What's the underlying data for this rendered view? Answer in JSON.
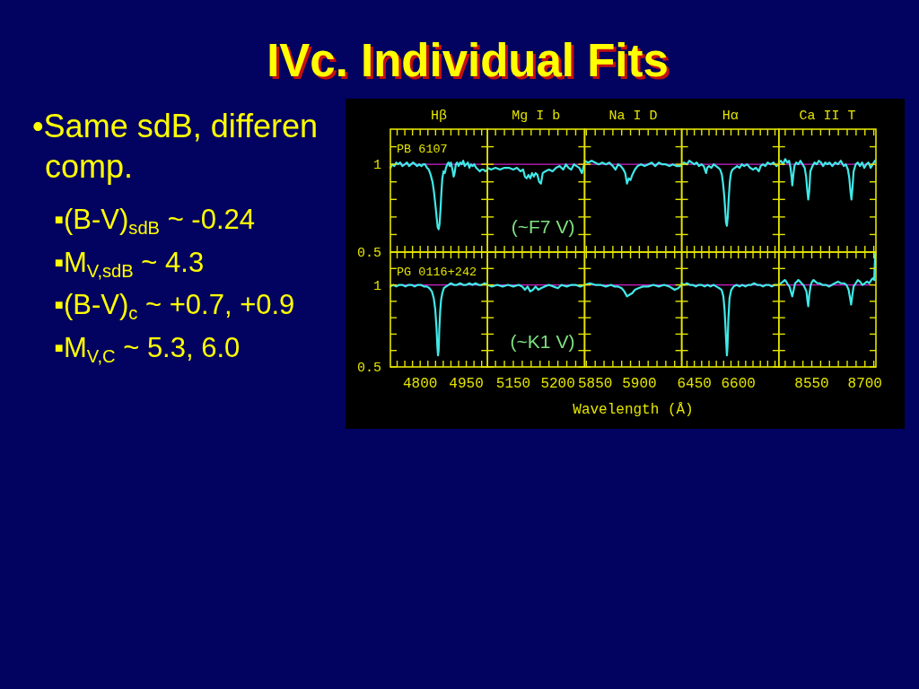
{
  "chart_data": [
    {
      "type": "other",
      "title": "IVc. Individual Fits",
      "subtitle": "•Same sdB, differen comp.",
      "annotations": [
        "▪(B-V)$_{sdB}$ ~ -0.24",
        "▪M$_{V,sdB}$ ~ 4.3",
        "▪(B-V)$_{c}$ ~ +0.7, +0.9",
        "▪M$_{V,C}$ ~ 5.3, 6.0"
      ]
    },
    {
      "type": "line",
      "title": "Hβ",
      "color": "#40e8e8",
      "x": [
        4703,
        4710,
        4716,
        4722,
        4728,
        4735,
        4742,
        4750,
        4757,
        4764,
        4770,
        4777,
        4784,
        4790,
        4797,
        4804,
        4810,
        4816,
        4822,
        4828,
        4834,
        4840,
        4845,
        4850,
        4854,
        4857,
        4860,
        4863,
        4866,
        4869,
        4872,
        4876,
        4880,
        4884,
        4888,
        4892,
        4896,
        4900,
        4905,
        4909,
        4912,
        4916,
        4920,
        4925,
        4930,
        4935,
        4940,
        4945,
        4950,
        4955,
        4960,
        4965,
        4970,
        4976,
        4982,
        4988,
        4994,
        5000,
        5006,
        5012,
        5019
      ],
      "values": [
        0.98,
        1.0,
        0.99,
        1.01,
        1.0,
        1.01,
        0.99,
        1.0,
        1.01,
        0.99,
        1.0,
        1.01,
        1.0,
        0.99,
        1.0,
        0.99,
        1.0,
        1.0,
        0.98,
        0.97,
        0.94,
        0.9,
        0.84,
        0.76,
        0.69,
        0.64,
        0.63,
        0.66,
        0.74,
        0.84,
        0.92,
        0.96,
        0.95,
        0.98,
        1.0,
        1.01,
        0.99,
        1.01,
        0.97,
        0.93,
        0.95,
        1.0,
        1.01,
        0.99,
        1.01,
        1.0,
        1.02,
        0.99,
        1.0,
        1.01,
        0.98,
        1.0,
        0.99,
        1.0,
        0.98,
        0.97,
        0.96,
        0.97,
        0.97,
        0.96,
        0.97
      ],
      "xlim": [
        4703,
        5019
      ],
      "xticks": [
        {
          "value": 4725,
          "label": null
        },
        {
          "value": 4750,
          "label": null
        },
        {
          "value": 4775,
          "label": null
        },
        4800,
        {
          "value": 4825,
          "label": null
        },
        {
          "value": 4850,
          "label": null
        },
        {
          "value": 4875,
          "label": null
        },
        {
          "value": 4900,
          "label": null
        },
        {
          "value": 4925,
          "label": null
        },
        4950,
        {
          "value": 4975,
          "label": null
        },
        {
          "value": 5000,
          "label": null
        }
      ],
      "ylim": [
        0.5,
        1.2
      ],
      "yticks": [
        {
          "value": 0.5,
          "label": "0.5"
        },
        {
          "value": 0.6,
          "label": null
        },
        {
          "value": 0.7,
          "label": null
        },
        {
          "value": 0.8,
          "label": null
        },
        {
          "value": 0.9,
          "label": null
        },
        {
          "value": 1,
          "label": "1"
        },
        {
          "value": 1.1,
          "label": null
        }
      ],
      "tick_labels": "y",
      "ref_lines": [
        {
          "axis": "y",
          "value": 1,
          "color": "#cc22cc"
        }
      ],
      "annotations": [
        "PB 6107"
      ]
    },
    {
      "type": "line",
      "title": "Mg I b",
      "color": "#40e8e8",
      "x": [
        5121,
        5125,
        5130,
        5135,
        5140,
        5145,
        5150,
        5154,
        5158,
        5161,
        5163,
        5165,
        5167,
        5169,
        5171,
        5173,
        5175,
        5177,
        5179,
        5181,
        5183,
        5186,
        5190,
        5194,
        5198,
        5202,
        5206,
        5209,
        5212,
        5215,
        5218,
        5221,
        5224,
        5227,
        5230
      ],
      "values": [
        0.98,
        0.97,
        0.98,
        0.97,
        0.98,
        0.98,
        0.97,
        0.98,
        0.96,
        0.97,
        0.93,
        0.92,
        0.94,
        0.92,
        0.95,
        0.93,
        0.95,
        0.94,
        0.9,
        0.89,
        0.95,
        0.96,
        0.97,
        0.96,
        0.98,
        0.99,
        0.97,
        1.0,
        0.98,
        0.97,
        1.0,
        0.99,
        0.98,
        0.95,
        1.01
      ],
      "xlim": [
        5121,
        5230
      ],
      "xticks": [
        {
          "value": 5130,
          "label": null
        },
        {
          "value": 5140,
          "label": null
        },
        5150,
        {
          "value": 5160,
          "label": null
        },
        {
          "value": 5170,
          "label": null
        },
        {
          "value": 5180,
          "label": null
        },
        {
          "value": 5190,
          "label": null
        },
        5200,
        {
          "value": 5210,
          "label": null
        },
        {
          "value": 5220,
          "label": null
        }
      ],
      "ylim": [
        0.5,
        1.2
      ],
      "yticks": [
        {
          "value": 0.5,
          "label": null
        },
        {
          "value": 0.6,
          "label": null
        },
        {
          "value": 0.7,
          "label": null
        },
        {
          "value": 0.8,
          "label": null
        },
        {
          "value": 0.9,
          "label": null
        },
        {
          "value": 1,
          "label": null
        },
        {
          "value": 1.1,
          "label": null
        }
      ],
      "tick_labels": false,
      "ref_lines": [
        {
          "axis": "y",
          "value": 1,
          "color": "#cc22cc"
        }
      ],
      "annotations": [
        "(~F7 V)"
      ]
    },
    {
      "type": "line",
      "title": "Na I D",
      "color": "#40e8e8",
      "x": [
        5838,
        5842,
        5846,
        5850,
        5854,
        5858,
        5862,
        5866,
        5870,
        5873,
        5876,
        5879,
        5882,
        5884,
        5886,
        5888,
        5890,
        5892,
        5895,
        5898,
        5902,
        5906,
        5910,
        5914,
        5918,
        5922,
        5926,
        5930,
        5934,
        5938,
        5942,
        5946,
        5948
      ],
      "values": [
        1.02,
        1.01,
        1.02,
        1.01,
        1.0,
        1.01,
        1.0,
        1.01,
        0.99,
        0.97,
        1.0,
        0.99,
        0.97,
        0.95,
        0.89,
        0.92,
        0.91,
        0.94,
        0.97,
        0.99,
        1.0,
        0.99,
        1.0,
        1.01,
        0.99,
        1.01,
        1.0,
        1.0,
        0.99,
        1.0,
        0.99,
        0.99,
        1.0
      ],
      "xlim": [
        5838,
        5948
      ],
      "xticks": [
        {
          "value": 5840,
          "label": null
        },
        5850,
        {
          "value": 5860,
          "label": null
        },
        {
          "value": 5870,
          "label": null
        },
        {
          "value": 5880,
          "label": null
        },
        {
          "value": 5890,
          "label": null
        },
        5900,
        {
          "value": 5910,
          "label": null
        },
        {
          "value": 5920,
          "label": null
        },
        {
          "value": 5930,
          "label": null
        },
        {
          "value": 5940,
          "label": null
        }
      ],
      "ylim": [
        0.5,
        1.2
      ],
      "yticks": [
        {
          "value": 0.5,
          "label": null
        },
        {
          "value": 0.6,
          "label": null
        },
        {
          "value": 0.7,
          "label": null
        },
        {
          "value": 0.8,
          "label": null
        },
        {
          "value": 0.9,
          "label": null
        },
        {
          "value": 1,
          "label": null
        },
        {
          "value": 1.1,
          "label": null
        }
      ],
      "tick_labels": false,
      "ref_lines": [
        {
          "axis": "y",
          "value": 1,
          "color": "#cc22cc"
        }
      ]
    },
    {
      "type": "line",
      "title": "Hα",
      "color": "#40e8e8",
      "x": [
        6407,
        6415,
        6425,
        6433,
        6441,
        6450,
        6458,
        6466,
        6474,
        6482,
        6490,
        6494,
        6500,
        6508,
        6516,
        6524,
        6532,
        6538,
        6544,
        6548,
        6552,
        6555,
        6558,
        6561,
        6564,
        6567,
        6571,
        6575,
        6580,
        6588,
        6596,
        6604,
        6612,
        6620,
        6630,
        6640,
        6650,
        6660,
        6670,
        6676,
        6684,
        6692,
        6700,
        6710,
        6720,
        6730,
        6738
      ],
      "values": [
        1.0,
        1.01,
        1.0,
        1.02,
        1.01,
        1.0,
        1.01,
        0.99,
        1.0,
        0.99,
        0.95,
        0.98,
        0.99,
        0.98,
        1.0,
        0.99,
        0.98,
        0.97,
        0.94,
        0.89,
        0.82,
        0.75,
        0.67,
        0.65,
        0.7,
        0.8,
        0.9,
        0.95,
        0.97,
        0.98,
        0.99,
        0.98,
        1.0,
        0.99,
        1.0,
        0.98,
        0.97,
        0.98,
        0.96,
        0.99,
        1.0,
        0.99,
        1.01,
        1.0,
        1.01,
        0.99,
        1.0
      ],
      "xlim": [
        6407,
        6738
      ],
      "xticks": [
        {
          "value": 6425,
          "label": null
        },
        6450,
        {
          "value": 6475,
          "label": null
        },
        {
          "value": 6500,
          "label": null
        },
        {
          "value": 6525,
          "label": null
        },
        {
          "value": 6550,
          "label": null
        },
        {
          "value": 6575,
          "label": null
        },
        6600,
        {
          "value": 6625,
          "label": null
        },
        {
          "value": 6650,
          "label": null
        },
        {
          "value": 6675,
          "label": null
        },
        {
          "value": 6700,
          "label": null
        },
        {
          "value": 6725,
          "label": null
        }
      ],
      "ylim": [
        0.5,
        1.2
      ],
      "yticks": [
        {
          "value": 0.5,
          "label": null
        },
        {
          "value": 0.6,
          "label": null
        },
        {
          "value": 0.7,
          "label": null
        },
        {
          "value": 0.8,
          "label": null
        },
        {
          "value": 0.9,
          "label": null
        },
        {
          "value": 1,
          "label": null
        },
        {
          "value": 1.1,
          "label": null
        }
      ],
      "tick_labels": false,
      "ref_lines": [
        {
          "axis": "y",
          "value": 1,
          "color": "#cc22cc"
        }
      ]
    },
    {
      "type": "line",
      "title": "Ca II T",
      "color": "#40e8e8",
      "x": [
        8457,
        8463,
        8469,
        8475,
        8481,
        8486,
        8490,
        8493,
        8495,
        8498,
        8501,
        8506,
        8512,
        8518,
        8524,
        8530,
        8534,
        8537,
        8540,
        8543,
        8546,
        8552,
        8558,
        8564,
        8570,
        8576,
        8582,
        8588,
        8594,
        8600,
        8608,
        8616,
        8624,
        8632,
        8640,
        8646,
        8652,
        8656,
        8659,
        8662,
        8665,
        8668,
        8674,
        8680,
        8686,
        8692,
        8698,
        8704,
        8710,
        8716,
        8722,
        8728
      ],
      "values": [
        1.01,
        1.02,
        1.0,
        1.03,
        1.01,
        1.02,
        0.98,
        0.93,
        0.88,
        0.94,
        0.99,
        1.01,
        1.0,
        1.02,
        1.0,
        0.98,
        0.93,
        0.86,
        0.8,
        0.85,
        0.96,
        0.99,
        1.01,
        1.0,
        1.02,
        1.01,
        0.99,
        1.01,
        1.0,
        1.01,
        0.99,
        1.01,
        1.0,
        1.02,
        0.99,
        1.0,
        0.97,
        0.92,
        0.85,
        0.8,
        0.87,
        0.96,
        1.0,
        1.01,
        0.99,
        1.01,
        0.98,
        1.0,
        1.01,
        0.98,
        1.0,
        1.02
      ],
      "xlim": [
        8457,
        8731
      ],
      "xticks": [
        {
          "value": 8475,
          "label": null
        },
        {
          "value": 8500,
          "label": null
        },
        {
          "value": 8525,
          "label": null
        },
        8550,
        {
          "value": 8575,
          "label": null
        },
        {
          "value": 8600,
          "label": null
        },
        {
          "value": 8625,
          "label": null
        },
        {
          "value": 8650,
          "label": null
        },
        {
          "value": 8675,
          "label": null
        },
        8700,
        {
          "value": 8725,
          "label": null
        }
      ],
      "ylim": [
        0.5,
        1.2
      ],
      "yticks": [
        {
          "value": 0.5,
          "label": null
        },
        {
          "value": 0.6,
          "label": null
        },
        {
          "value": 0.7,
          "label": null
        },
        {
          "value": 0.8,
          "label": null
        },
        {
          "value": 0.9,
          "label": null
        },
        {
          "value": 1,
          "label": null
        },
        {
          "value": 1.1,
          "label": null
        }
      ],
      "tick_labels": false,
      "ref_lines": [
        {
          "axis": "y",
          "value": 1,
          "color": "#cc22cc"
        }
      ]
    },
    {
      "type": "line",
      "color": "#40e8e8",
      "x": [
        4703,
        4712,
        4722,
        4732,
        4742,
        4752,
        4762,
        4772,
        4782,
        4792,
        4802,
        4812,
        4822,
        4830,
        4838,
        4844,
        4849,
        4853,
        4856,
        4858,
        4860,
        4862,
        4865,
        4868,
        4872,
        4877,
        4884,
        4892,
        4900,
        4910,
        4920,
        4930,
        4940,
        4950,
        4960,
        4970,
        4980,
        4990,
        5000,
        5010,
        5019
      ],
      "values": [
        0.99,
        1.0,
        0.99,
        1.0,
        1.0,
        0.99,
        1.0,
        1.0,
        0.99,
        1.0,
        1.0,
        0.99,
        0.99,
        0.98,
        0.96,
        0.92,
        0.85,
        0.74,
        0.62,
        0.57,
        0.6,
        0.72,
        0.84,
        0.91,
        0.95,
        0.98,
        0.99,
        1.0,
        1.01,
        1.0,
        1.0,
        1.01,
        1.0,
        1.0,
        1.01,
        1.0,
        1.01,
        1.0,
        1.0,
        1.01,
        1.0
      ],
      "xlim": [
        4703,
        5019
      ],
      "xticks": [
        {
          "value": 4725,
          "label": null
        },
        {
          "value": 4750,
          "label": null
        },
        {
          "value": 4775,
          "label": null
        },
        4800,
        {
          "value": 4825,
          "label": null
        },
        {
          "value": 4850,
          "label": null
        },
        {
          "value": 4875,
          "label": null
        },
        {
          "value": 4900,
          "label": null
        },
        {
          "value": 4925,
          "label": null
        },
        4950,
        {
          "value": 4975,
          "label": null
        },
        {
          "value": 5000,
          "label": null
        }
      ],
      "ylim": [
        0.5,
        1.2
      ],
      "yticks": [
        {
          "value": 0.5,
          "label": "0.5"
        },
        {
          "value": 0.6,
          "label": null
        },
        {
          "value": 0.7,
          "label": null
        },
        {
          "value": 0.8,
          "label": null
        },
        {
          "value": 0.9,
          "label": null
        },
        {
          "value": 1,
          "label": "1"
        },
        {
          "value": 1.1,
          "label": null
        }
      ],
      "ref_lines": [
        {
          "axis": "y",
          "value": 1,
          "color": "#cc22cc"
        }
      ],
      "annotations": [
        "PG 0116+242"
      ]
    },
    {
      "type": "line",
      "color": "#40e8e8",
      "x": [
        5121,
        5126,
        5132,
        5138,
        5144,
        5150,
        5156,
        5160,
        5163,
        5166,
        5169,
        5172,
        5175,
        5178,
        5181,
        5185,
        5190,
        5195,
        5200,
        5204,
        5210,
        5215,
        5220,
        5225,
        5230
      ],
      "values": [
        1.0,
        0.99,
        1.0,
        0.99,
        1.0,
        0.99,
        1.0,
        0.99,
        0.97,
        0.99,
        0.96,
        0.97,
        0.99,
        0.97,
        0.98,
        0.99,
        1.0,
        0.99,
        0.98,
        1.0,
        0.99,
        1.0,
        1.0,
        0.99,
        1.0
      ],
      "xlim": [
        5121,
        5230
      ],
      "xticks": [
        {
          "value": 5130,
          "label": null
        },
        {
          "value": 5140,
          "label": null
        },
        5150,
        {
          "value": 5160,
          "label": null
        },
        {
          "value": 5170,
          "label": null
        },
        {
          "value": 5180,
          "label": null
        },
        {
          "value": 5190,
          "label": null
        },
        5200,
        {
          "value": 5210,
          "label": null
        },
        {
          "value": 5220,
          "label": null
        }
      ],
      "ylim": [
        0.5,
        1.2
      ],
      "yticks": [
        {
          "value": 0.5,
          "label": null
        },
        {
          "value": 0.6,
          "label": null
        },
        {
          "value": 0.7,
          "label": null
        },
        {
          "value": 0.8,
          "label": null
        },
        {
          "value": 0.9,
          "label": null
        },
        {
          "value": 1,
          "label": null
        },
        {
          "value": 1.1,
          "label": null
        }
      ],
      "tick_labels": "x",
      "ref_lines": [
        {
          "axis": "y",
          "value": 1,
          "color": "#cc22cc"
        }
      ],
      "annotations": [
        "(~K1 V)"
      ]
    },
    {
      "type": "line",
      "xlabel": "Wavelength (Å)",
      "color": "#40e8e8",
      "x": [
        5838,
        5844,
        5850,
        5856,
        5862,
        5868,
        5872,
        5876,
        5880,
        5883,
        5886,
        5889,
        5892,
        5895,
        5899,
        5904,
        5910,
        5916,
        5922,
        5928,
        5934,
        5940,
        5944,
        5948
      ],
      "values": [
        1.0,
        1.01,
        1.0,
        1.0,
        0.99,
        1.0,
        0.99,
        0.99,
        0.98,
        0.96,
        0.93,
        0.94,
        0.95,
        0.97,
        0.98,
        0.99,
        0.99,
        1.0,
        0.99,
        1.0,
        0.99,
        0.97,
        0.98,
        1.0
      ],
      "xlim": [
        5838,
        5948
      ],
      "xticks": [
        {
          "value": 5840,
          "label": null
        },
        5850,
        {
          "value": 5860,
          "label": null
        },
        {
          "value": 5870,
          "label": null
        },
        {
          "value": 5880,
          "label": null
        },
        {
          "value": 5890,
          "label": null
        },
        5900,
        {
          "value": 5910,
          "label": null
        },
        {
          "value": 5920,
          "label": null
        },
        {
          "value": 5930,
          "label": null
        },
        {
          "value": 5940,
          "label": null
        }
      ],
      "ylim": [
        0.5,
        1.2
      ],
      "yticks": [
        {
          "value": 0.5,
          "label": null
        },
        {
          "value": 0.6,
          "label": null
        },
        {
          "value": 0.7,
          "label": null
        },
        {
          "value": 0.8,
          "label": null
        },
        {
          "value": 0.9,
          "label": null
        },
        {
          "value": 1,
          "label": null
        },
        {
          "value": 1.1,
          "label": null
        }
      ],
      "tick_labels": "x",
      "ref_lines": [
        {
          "axis": "y",
          "value": 1,
          "color": "#cc22cc"
        }
      ]
    },
    {
      "type": "line",
      "color": "#40e8e8",
      "x": [
        6407,
        6415,
        6425,
        6435,
        6445,
        6455,
        6465,
        6475,
        6485,
        6495,
        6505,
        6515,
        6525,
        6535,
        6543,
        6549,
        6553,
        6556,
        6559,
        6561,
        6563,
        6566,
        6570,
        6576,
        6584,
        6594,
        6604,
        6614,
        6624,
        6634,
        6644,
        6654,
        6664,
        6674,
        6684,
        6694,
        6704,
        6714,
        6724,
        6738
      ],
      "values": [
        1.01,
        1.0,
        1.01,
        1.0,
        1.0,
        0.99,
        1.0,
        1.0,
        0.99,
        1.0,
        0.99,
        1.0,
        0.99,
        0.98,
        0.97,
        0.93,
        0.85,
        0.75,
        0.64,
        0.57,
        0.62,
        0.79,
        0.92,
        0.97,
        0.99,
        1.0,
        0.99,
        1.0,
        0.99,
        1.0,
        1.0,
        1.01,
        1.0,
        1.0,
        0.99,
        1.0,
        1.0,
        0.99,
        1.0,
        1.0
      ],
      "xlim": [
        6407,
        6738
      ],
      "xticks": [
        {
          "value": 6425,
          "label": null
        },
        6450,
        {
          "value": 6475,
          "label": null
        },
        {
          "value": 6500,
          "label": null
        },
        {
          "value": 6525,
          "label": null
        },
        {
          "value": 6550,
          "label": null
        },
        {
          "value": 6575,
          "label": null
        },
        6600,
        {
          "value": 6625,
          "label": null
        },
        {
          "value": 6650,
          "label": null
        },
        {
          "value": 6675,
          "label": null
        },
        {
          "value": 6700,
          "label": null
        },
        {
          "value": 6725,
          "label": null
        }
      ],
      "ylim": [
        0.5,
        1.2
      ],
      "yticks": [
        {
          "value": 0.5,
          "label": null
        },
        {
          "value": 0.6,
          "label": null
        },
        {
          "value": 0.7,
          "label": null
        },
        {
          "value": 0.8,
          "label": null
        },
        {
          "value": 0.9,
          "label": null
        },
        {
          "value": 1,
          "label": null
        },
        {
          "value": 1.1,
          "label": null
        }
      ],
      "tick_labels": "x",
      "ref_lines": [
        {
          "axis": "y",
          "value": 1,
          "color": "#cc22cc"
        }
      ]
    },
    {
      "type": "line",
      "color": "#40e8e8",
      "x": [
        8457,
        8463,
        8469,
        8474,
        8478,
        8483,
        8487,
        8491,
        8495,
        8499,
        8503,
        8508,
        8512,
        8517,
        8521,
        8526,
        8531,
        8535,
        8538,
        8540,
        8543,
        8547,
        8551,
        8555,
        8560,
        8566,
        8572,
        8580,
        8590,
        8598,
        8607,
        8615,
        8624,
        8632,
        8641,
        8648,
        8654,
        8658,
        8661,
        8664,
        8668,
        8674,
        8680,
        8686,
        8693,
        8700,
        8706,
        8712,
        8718,
        8722,
        8726,
        8729
      ],
      "values": [
        1.0,
        1.01,
        1.02,
        1.03,
        1.02,
        1.0,
        0.99,
        0.96,
        0.93,
        0.97,
        1.01,
        1.02,
        1.03,
        1.02,
        1.01,
        1.0,
        0.98,
        0.96,
        0.9,
        0.87,
        0.94,
        1.0,
        1.02,
        1.03,
        1.02,
        1.01,
        1.01,
        1.0,
        1.0,
        0.99,
        1.0,
        1.01,
        1.02,
        1.01,
        1.01,
        1.0,
        0.97,
        0.92,
        0.88,
        0.93,
        0.99,
        1.01,
        1.03,
        1.02,
        1.0,
        1.01,
        1.02,
        1.01,
        1.03,
        1.04,
        1.03,
        1.19
      ],
      "xlim": [
        8457,
        8731
      ],
      "xticks": [
        {
          "value": 8475,
          "label": null
        },
        {
          "value": 8500,
          "label": null
        },
        {
          "value": 8525,
          "label": null
        },
        8550,
        {
          "value": 8575,
          "label": null
        },
        {
          "value": 8600,
          "label": null
        },
        {
          "value": 8625,
          "label": null
        },
        {
          "value": 8650,
          "label": null
        },
        {
          "value": 8675,
          "label": null
        },
        8700,
        {
          "value": 8725,
          "label": null
        }
      ],
      "ylim": [
        0.5,
        1.2
      ],
      "yticks": [
        {
          "value": 0.5,
          "label": null
        },
        {
          "value": 0.6,
          "label": null
        },
        {
          "value": 0.7,
          "label": null
        },
        {
          "value": 0.8,
          "label": null
        },
        {
          "value": 0.9,
          "label": null
        },
        {
          "value": 1,
          "label": null
        },
        {
          "value": 1.1,
          "label": null
        }
      ],
      "tick_labels": "x",
      "ref_lines": [
        {
          "axis": "y",
          "value": 1,
          "color": "#cc22cc"
        }
      ]
    }
  ]
}
